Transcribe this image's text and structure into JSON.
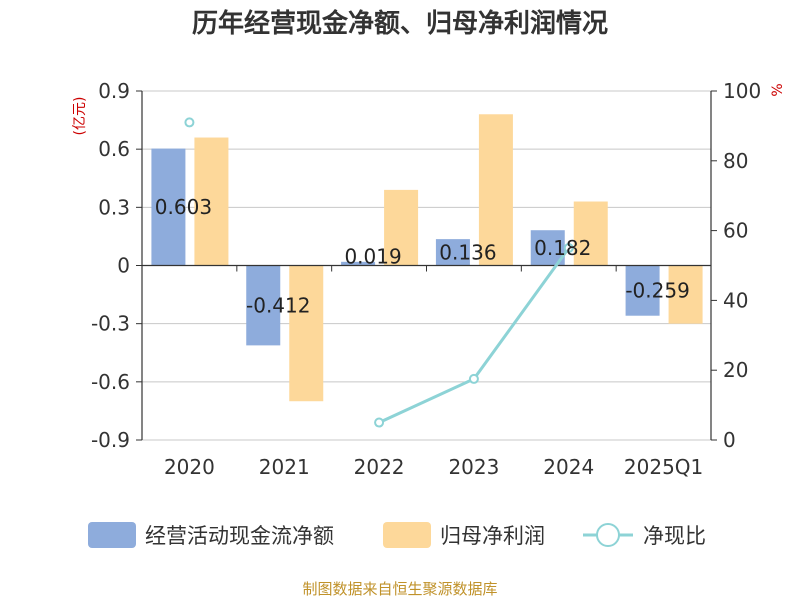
{
  "chart_data": {
    "type": "bar",
    "title": "历年经营现金净额、归母净利润情况",
    "categories": [
      "2020",
      "2021",
      "2022",
      "2023",
      "2024",
      "2025Q1"
    ],
    "left_axis": {
      "unit": "(亿元)",
      "ylim": [
        -0.9,
        0.9
      ],
      "ticks": [
        0.9,
        0.6,
        0.3,
        0,
        -0.3,
        -0.6,
        -0.9
      ],
      "tick_labels": [
        "0.9",
        "0.6",
        "0.3",
        "0",
        "-0.3",
        "-0.6",
        "-0.9"
      ]
    },
    "right_axis": {
      "unit": "%",
      "ylim": [
        0,
        100
      ],
      "ticks": [
        100,
        80,
        60,
        40,
        20,
        0
      ],
      "tick_labels": [
        "100",
        "80",
        "60",
        "40",
        "20",
        "0"
      ]
    },
    "series": [
      {
        "name": "经营活动现金流净额",
        "kind": "bar",
        "axis": "left",
        "color": "#8eacdc",
        "values": [
          0.603,
          -0.412,
          0.019,
          0.136,
          0.182,
          -0.259
        ],
        "labels": [
          "0.603",
          "-0.412",
          "0.019",
          "0.136",
          "0.182",
          "-0.259"
        ]
      },
      {
        "name": "归母净利润",
        "kind": "bar",
        "axis": "left",
        "color": "#fdd89a",
        "values": [
          0.66,
          -0.7,
          0.39,
          0.78,
          0.33,
          -0.3
        ]
      },
      {
        "name": "净现比",
        "kind": "line",
        "axis": "right",
        "color": "#8dd3d6",
        "values": [
          91,
          null,
          5,
          17.5,
          55,
          null
        ]
      }
    ],
    "grid": true,
    "legend_position": "bottom"
  },
  "source": "制图数据来自恒生聚源数据库"
}
